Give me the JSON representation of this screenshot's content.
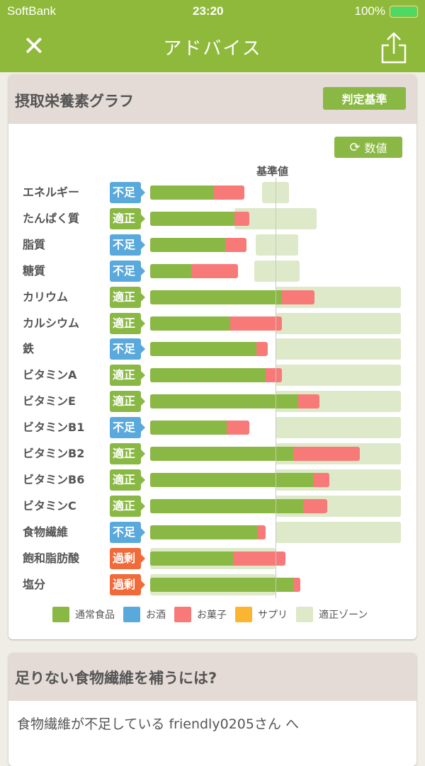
{
  "status_bar": {
    "carrier": "SoftBank",
    "time": "23:20",
    "battery": "100%"
  },
  "nav": {
    "title": "アドバイス",
    "close_icon": "close-icon",
    "share_icon": "share-icon"
  },
  "graph_card": {
    "title": "摂取栄養素グラフ",
    "criteria_button": "判定基準",
    "toggle_button": "数値",
    "reference_label": "基準値"
  },
  "colors": {
    "normal_food": "#8ab844",
    "alcohol": "#5aa9dd",
    "snacks": "#f87a78",
    "supplement": "#fbb531",
    "zone": "#dde9c9",
    "shortage": "#5aa9dd",
    "adequate": "#8ab844",
    "excess": "#f06a3a"
  },
  "chart_data": {
    "type": "bar",
    "orientation": "horizontal",
    "stacked": true,
    "xlim": [
      0,
      200
    ],
    "reference": 100,
    "rows": [
      {
        "label": "エネルギー",
        "status": "不足",
        "kind": "shortage",
        "food": 51,
        "snack": 24,
        "zone": [
          89,
          111
        ]
      },
      {
        "label": "たんぱく質",
        "status": "適正",
        "kind": "adequate",
        "food": 67,
        "snack": 12,
        "zone": [
          67,
          133
        ]
      },
      {
        "label": "脂質",
        "status": "不足",
        "kind": "shortage",
        "food": 60,
        "snack": 17,
        "zone": [
          84,
          118
        ]
      },
      {
        "label": "糖質",
        "status": "不足",
        "kind": "shortage",
        "food": 33,
        "snack": 37,
        "zone": [
          83,
          119
        ]
      },
      {
        "label": "カリウム",
        "status": "適正",
        "kind": "adequate",
        "food": 105,
        "snack": 26,
        "zone": [
          100,
          200
        ]
      },
      {
        "label": "カルシウム",
        "status": "適正",
        "kind": "adequate",
        "food": 64,
        "snack": 41,
        "zone": [
          100,
          200
        ]
      },
      {
        "label": "鉄",
        "status": "不足",
        "kind": "shortage",
        "food": 85,
        "snack": 9,
        "zone": [
          100,
          200
        ]
      },
      {
        "label": "ビタミンA",
        "status": "適正",
        "kind": "adequate",
        "food": 92,
        "snack": 13,
        "zone": [
          100,
          200
        ]
      },
      {
        "label": "ビタミンE",
        "status": "適正",
        "kind": "adequate",
        "food": 118,
        "snack": 17,
        "zone": [
          100,
          200
        ]
      },
      {
        "label": "ビタミンB1",
        "status": "不足",
        "kind": "shortage",
        "food": 61,
        "snack": 18,
        "zone": [
          100,
          200
        ]
      },
      {
        "label": "ビタミンB2",
        "status": "適正",
        "kind": "adequate",
        "food": 114,
        "snack": 53,
        "zone": [
          100,
          200
        ]
      },
      {
        "label": "ビタミンB6",
        "status": "適正",
        "kind": "adequate",
        "food": 130,
        "snack": 13,
        "zone": [
          100,
          200
        ]
      },
      {
        "label": "ビタミンC",
        "status": "適正",
        "kind": "adequate",
        "food": 122,
        "snack": 19,
        "zone": [
          100,
          200
        ]
      },
      {
        "label": "食物繊維",
        "status": "不足",
        "kind": "shortage",
        "food": 86,
        "snack": 6,
        "zone": [
          100,
          200
        ]
      },
      {
        "label": "飽和脂肪酸",
        "status": "過剰",
        "kind": "excess",
        "food": 66,
        "snack": 42,
        "zone": [
          0,
          100
        ]
      },
      {
        "label": "塩分",
        "status": "過剰",
        "kind": "excess",
        "food": 114,
        "snack": 6,
        "zone": [
          0,
          100
        ]
      }
    ],
    "legend": [
      {
        "label": "通常食品",
        "color": "#8ab844"
      },
      {
        "label": "お酒",
        "color": "#5aa9dd"
      },
      {
        "label": "お菓子",
        "color": "#f87a78"
      },
      {
        "label": "サプリ",
        "color": "#fbb531"
      },
      {
        "label": "適正ゾーン",
        "color": "#dde9c9"
      }
    ]
  },
  "advice_card": {
    "title": "足りない食物繊維を補うには?",
    "body": "食物繊維が不足している friendly0205さん へ"
  }
}
